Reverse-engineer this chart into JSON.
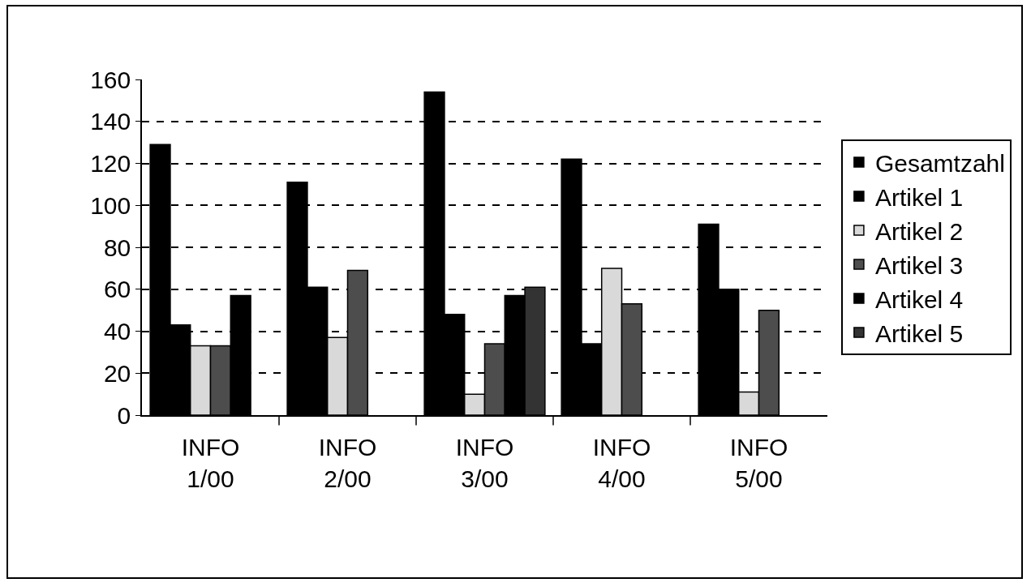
{
  "chart_data": {
    "type": "bar",
    "categories": [
      "INFO 1/00",
      "INFO 2/00",
      "INFO 3/00",
      "INFO 4/00",
      "INFO 5/00"
    ],
    "series": [
      {
        "name": "Gesamtzahl",
        "color": "#000000",
        "values": [
          129,
          111,
          154,
          122,
          91
        ]
      },
      {
        "name": "Artikel 1",
        "color": "#000000",
        "values": [
          43,
          61,
          48,
          34,
          60
        ]
      },
      {
        "name": "Artikel 2",
        "color": "#d9d9d9",
        "values": [
          33,
          37,
          10,
          70,
          11
        ]
      },
      {
        "name": "Artikel 3",
        "color": "#4d4d4d",
        "values": [
          33,
          69,
          34,
          53,
          50
        ]
      },
      {
        "name": "Artikel 4",
        "color": "#000000",
        "values": [
          57,
          null,
          57,
          null,
          null
        ]
      },
      {
        "name": "Artikel 5",
        "color": "#333333",
        "values": [
          null,
          null,
          61,
          null,
          null
        ]
      }
    ],
    "ylim": [
      0,
      160
    ],
    "yticks": [
      0,
      20,
      40,
      60,
      80,
      100,
      120,
      140,
      160
    ],
    "grid": "y",
    "legend": "right"
  }
}
